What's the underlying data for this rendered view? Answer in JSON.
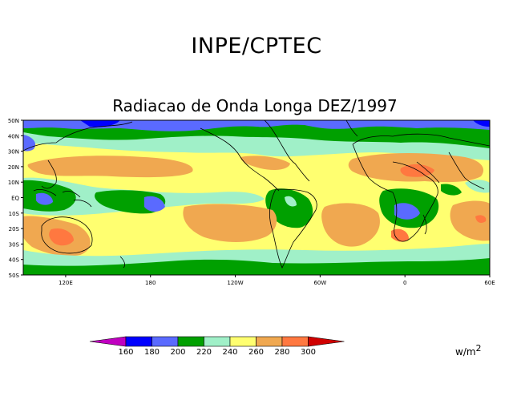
{
  "header": {
    "institution": "INPE/CPTEC",
    "title": "Radiacao de Onda Longa DEZ/1997"
  },
  "map": {
    "lat_labels": [
      "50N",
      "40N",
      "30N",
      "20N",
      "10N",
      "EQ",
      "10S",
      "20S",
      "30S",
      "40S",
      "50S"
    ],
    "lon_labels": [
      "120E",
      "180",
      "120W",
      "60W",
      "0",
      "60E"
    ],
    "lat_range": [
      -50,
      50
    ],
    "lon_range_deg_east": [
      90,
      420
    ],
    "lon_tick_values_deg_east": [
      120,
      180,
      240,
      300,
      360,
      420
    ]
  },
  "legend": {
    "ticks": [
      "160",
      "180",
      "200",
      "220",
      "240",
      "260",
      "280",
      "300"
    ],
    "unit_base": "w/m",
    "unit_exp": "2",
    "colors": [
      "#c000c0",
      "#0000ff",
      "#5a6aff",
      "#00a000",
      "#a0f0c8",
      "#ffff70",
      "#f0a850",
      "#ff7840",
      "#d00000"
    ]
  }
}
